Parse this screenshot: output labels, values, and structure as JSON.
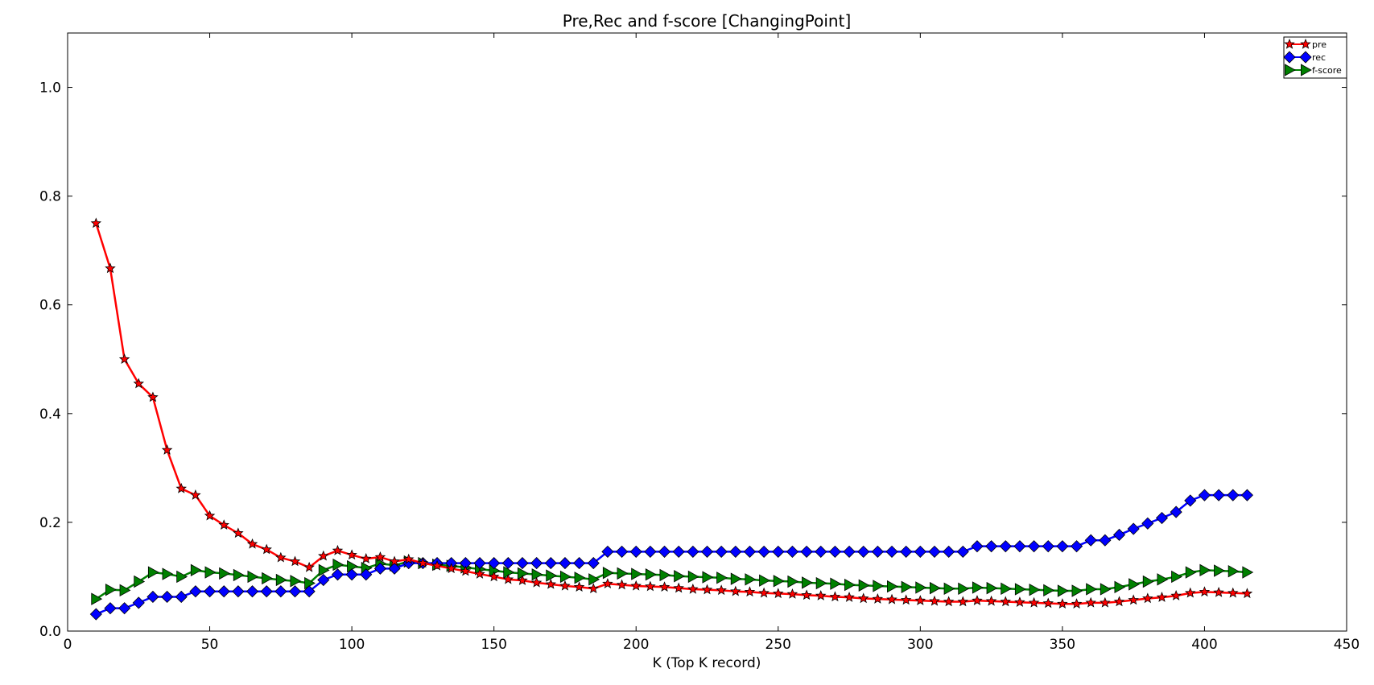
{
  "chart_data": {
    "type": "line",
    "title": "Pre,Rec and f-score [ChangingPoint]",
    "xlabel": "K (Top K record)",
    "ylabel": "",
    "xlim": [
      0,
      450
    ],
    "ylim": [
      0.0,
      1.1
    ],
    "xticks": [
      0,
      50,
      100,
      150,
      200,
      250,
      300,
      350,
      400,
      450
    ],
    "yticks": [
      0.0,
      0.2,
      0.4,
      0.6,
      0.8,
      1.0
    ],
    "xtick_labels": [
      "0",
      "50",
      "100",
      "150",
      "200",
      "250",
      "300",
      "350",
      "400",
      "450"
    ],
    "ytick_labels": [
      "0.0",
      "0.2",
      "0.4",
      "0.6",
      "0.8",
      "1.0"
    ],
    "grid": false,
    "legend_position": "top-right",
    "x": [
      10,
      15,
      20,
      25,
      30,
      35,
      40,
      45,
      50,
      55,
      60,
      65,
      70,
      75,
      80,
      85,
      90,
      95,
      100,
      105,
      110,
      115,
      120,
      125,
      130,
      135,
      140,
      145,
      150,
      155,
      160,
      165,
      170,
      175,
      180,
      185,
      190,
      195,
      200,
      205,
      210,
      215,
      220,
      225,
      230,
      235,
      240,
      245,
      250,
      255,
      260,
      265,
      270,
      275,
      280,
      285,
      290,
      295,
      300,
      305,
      310,
      315,
      320,
      325,
      330,
      335,
      340,
      345,
      350,
      355,
      360,
      365,
      370,
      375,
      380,
      385,
      390,
      395,
      400,
      405,
      410,
      415
    ],
    "series": [
      {
        "name": "pre",
        "color": "#ff0000",
        "marker": "star",
        "values": [
          0.75,
          0.667,
          0.5,
          0.455,
          0.43,
          0.333,
          0.262,
          0.25,
          0.212,
          0.195,
          0.18,
          0.16,
          0.15,
          0.135,
          0.128,
          0.117,
          0.138,
          0.148,
          0.14,
          0.133,
          0.136,
          0.128,
          0.132,
          0.125,
          0.12,
          0.115,
          0.11,
          0.105,
          0.1,
          0.095,
          0.093,
          0.089,
          0.086,
          0.083,
          0.081,
          0.078,
          0.087,
          0.085,
          0.083,
          0.082,
          0.081,
          0.079,
          0.077,
          0.076,
          0.075,
          0.073,
          0.072,
          0.07,
          0.069,
          0.068,
          0.066,
          0.065,
          0.063,
          0.062,
          0.06,
          0.059,
          0.058,
          0.057,
          0.056,
          0.055,
          0.054,
          0.054,
          0.056,
          0.055,
          0.054,
          0.053,
          0.052,
          0.051,
          0.05,
          0.05,
          0.052,
          0.052,
          0.054,
          0.057,
          0.06,
          0.062,
          0.065,
          0.07,
          0.072,
          0.071,
          0.07,
          0.069
        ]
      },
      {
        "name": "rec",
        "color": "#0000ff",
        "marker": "diamond",
        "values": [
          0.031,
          0.042,
          0.042,
          0.052,
          0.063,
          0.063,
          0.063,
          0.073,
          0.073,
          0.073,
          0.073,
          0.073,
          0.073,
          0.073,
          0.073,
          0.073,
          0.094,
          0.104,
          0.104,
          0.104,
          0.115,
          0.115,
          0.125,
          0.125,
          0.125,
          0.125,
          0.125,
          0.125,
          0.125,
          0.125,
          0.125,
          0.125,
          0.125,
          0.125,
          0.125,
          0.125,
          0.146,
          0.146,
          0.146,
          0.146,
          0.146,
          0.146,
          0.146,
          0.146,
          0.146,
          0.146,
          0.146,
          0.146,
          0.146,
          0.146,
          0.146,
          0.146,
          0.146,
          0.146,
          0.146,
          0.146,
          0.146,
          0.146,
          0.146,
          0.146,
          0.146,
          0.146,
          0.156,
          0.156,
          0.156,
          0.156,
          0.156,
          0.156,
          0.156,
          0.156,
          0.167,
          0.167,
          0.177,
          0.188,
          0.198,
          0.208,
          0.219,
          0.24,
          0.25,
          0.25,
          0.25,
          0.25
        ]
      },
      {
        "name": "f-score",
        "color": "#008000",
        "marker": "triangle-right",
        "values": [
          0.059,
          0.076,
          0.075,
          0.091,
          0.108,
          0.105,
          0.1,
          0.112,
          0.108,
          0.106,
          0.103,
          0.1,
          0.097,
          0.094,
          0.092,
          0.088,
          0.112,
          0.122,
          0.119,
          0.116,
          0.124,
          0.121,
          0.128,
          0.125,
          0.122,
          0.12,
          0.117,
          0.114,
          0.111,
          0.108,
          0.106,
          0.104,
          0.102,
          0.1,
          0.098,
          0.095,
          0.107,
          0.106,
          0.105,
          0.104,
          0.103,
          0.101,
          0.1,
          0.099,
          0.098,
          0.096,
          0.095,
          0.093,
          0.092,
          0.091,
          0.089,
          0.088,
          0.087,
          0.085,
          0.084,
          0.083,
          0.082,
          0.081,
          0.08,
          0.079,
          0.078,
          0.078,
          0.08,
          0.079,
          0.078,
          0.077,
          0.076,
          0.075,
          0.074,
          0.074,
          0.077,
          0.077,
          0.081,
          0.086,
          0.091,
          0.095,
          0.1,
          0.108,
          0.112,
          0.111,
          0.11,
          0.108
        ]
      }
    ]
  }
}
